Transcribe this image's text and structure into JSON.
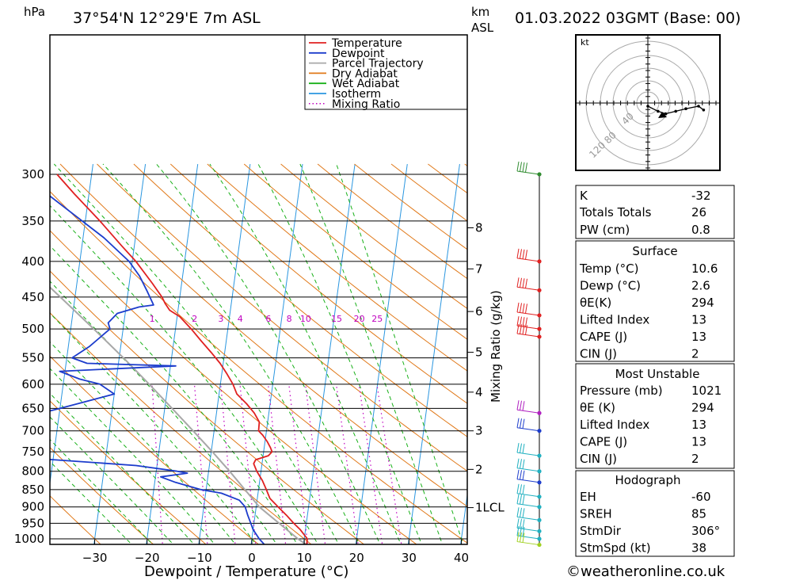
{
  "header": {
    "location": "37°54'N 12°29'E 7m ASL",
    "datetime": "01.03.2022 03GMT (Base: 00)",
    "pressure_unit": "hPa",
    "height_unit_km": "km",
    "height_unit_asl": "ASL"
  },
  "footer": {
    "x_label": "Dewpoint / Temperature (°C)",
    "mixing_label": "Mixing Ratio (g/kg)",
    "credit": "©weatheronline.co.uk"
  },
  "legend": [
    {
      "label": "Temperature",
      "color": "#e02020",
      "style": "solid"
    },
    {
      "label": "Dewpoint",
      "color": "#1c3ccc",
      "style": "solid"
    },
    {
      "label": "Parcel Trajectory",
      "color": "#a8a8a8",
      "style": "solid"
    },
    {
      "label": "Dry Adiabat",
      "color": "#e07818",
      "style": "solid"
    },
    {
      "label": "Wet Adiabat",
      "color": "#18b018",
      "style": "solid"
    },
    {
      "label": "Isotherm",
      "color": "#2a96e0",
      "style": "solid"
    },
    {
      "label": "Mixing Ratio",
      "color": "#c000c0",
      "style": "dotted"
    }
  ],
  "chart_data": {
    "type": "line",
    "subtype": "skew-t log-p",
    "x_axis": {
      "label": "Dewpoint / Temperature (°C)",
      "ticks": [
        -30,
        -20,
        -10,
        0,
        10,
        20,
        30,
        40
      ]
    },
    "y_axis": {
      "label": "hPa",
      "scale": "log",
      "ticks": [
        300,
        350,
        400,
        450,
        500,
        550,
        600,
        650,
        700,
        750,
        800,
        850,
        900,
        950,
        1000
      ],
      "ylim": [
        1000,
        300
      ]
    },
    "height_axis": {
      "label": "km ASL",
      "ticks": [
        {
          "label": "8",
          "p": 358
        },
        {
          "label": "7",
          "p": 410
        },
        {
          "label": "6",
          "p": 472
        },
        {
          "label": "5",
          "p": 540
        },
        {
          "label": "4",
          "p": 616
        },
        {
          "label": "3",
          "p": 700
        },
        {
          "label": "2",
          "p": 795
        },
        {
          "label": "1LCL",
          "p": 902
        }
      ]
    },
    "mixing_ratio_labels": [
      "1",
      "2",
      "3",
      "4",
      "6",
      "8",
      "10",
      "15",
      "20",
      "25"
    ],
    "series": [
      {
        "name": "Temperature",
        "color": "#e02020",
        "points": [
          [
            1020,
            10.6
          ],
          [
            1000,
            10.6
          ],
          [
            970,
            9.0
          ],
          [
            950,
            7.6
          ],
          [
            925,
            6.0
          ],
          [
            900,
            4.2
          ],
          [
            875,
            2.4
          ],
          [
            850,
            1.5
          ],
          [
            825,
            0.5
          ],
          [
            800,
            -0.8
          ],
          [
            780,
            -1.6
          ],
          [
            770,
            -1.3
          ],
          [
            760,
            1.0
          ],
          [
            750,
            1.6
          ],
          [
            740,
            1.2
          ],
          [
            725,
            0.4
          ],
          [
            710,
            -0.6
          ],
          [
            700,
            -1.5
          ],
          [
            680,
            -1.6
          ],
          [
            660,
            -2.8
          ],
          [
            640,
            -4.5
          ],
          [
            620,
            -6.6
          ],
          [
            600,
            -7.6
          ],
          [
            580,
            -9.0
          ],
          [
            560,
            -10.6
          ],
          [
            540,
            -12.6
          ],
          [
            520,
            -14.8
          ],
          [
            500,
            -17.0
          ],
          [
            480,
            -19.5
          ],
          [
            470,
            -21.6
          ],
          [
            460,
            -22.6
          ],
          [
            450,
            -23.4
          ],
          [
            430,
            -25.6
          ],
          [
            400,
            -29.3
          ],
          [
            380,
            -32.4
          ],
          [
            350,
            -37.2
          ],
          [
            320,
            -42.8
          ],
          [
            300,
            -46.6
          ]
        ]
      },
      {
        "name": "Dewpoint",
        "color": "#1c3ccc",
        "points": [
          [
            1020,
            2.6
          ],
          [
            1000,
            1.4
          ],
          [
            970,
            0.0
          ],
          [
            950,
            -0.6
          ],
          [
            925,
            -1.4
          ],
          [
            900,
            -2.1
          ],
          [
            880,
            -3.4
          ],
          [
            860,
            -7.0
          ],
          [
            850,
            -11.0
          ],
          [
            830,
            -16.0
          ],
          [
            815,
            -19.0
          ],
          [
            805,
            -14.0
          ],
          [
            800,
            -16.0
          ],
          [
            785,
            -24.0
          ],
          [
            770,
            -40.0
          ],
          [
            760,
            -60.0
          ],
          [
            740,
            -60.0
          ],
          [
            720,
            -55.0
          ],
          [
            700,
            -48.0
          ],
          [
            690,
            -47.5
          ],
          [
            670,
            -46.8
          ],
          [
            650,
            -40.0
          ],
          [
            620,
            -30.0
          ],
          [
            600,
            -33.0
          ],
          [
            590,
            -37.0
          ],
          [
            575,
            -41.0
          ],
          [
            565,
            -19.0
          ],
          [
            560,
            -36.0
          ],
          [
            550,
            -39.0
          ],
          [
            530,
            -36.0
          ],
          [
            500,
            -32.5
          ],
          [
            490,
            -33.0
          ],
          [
            475,
            -31.5
          ],
          [
            465,
            -27.5
          ],
          [
            462,
            -24.8
          ],
          [
            440,
            -26.5
          ],
          [
            420,
            -28.2
          ],
          [
            400,
            -30.6
          ],
          [
            370,
            -36.0
          ],
          [
            340,
            -43.0
          ],
          [
            320,
            -48.0
          ],
          [
            300,
            -52.0
          ]
        ]
      },
      {
        "name": "Parcel Trajectory",
        "color": "#a8a8a8",
        "points": [
          [
            1020,
            10.6
          ],
          [
            1000,
            8.8
          ],
          [
            950,
            4.8
          ],
          [
            900,
            0.6
          ],
          [
            850,
            -2.6
          ],
          [
            800,
            -6.0
          ],
          [
            750,
            -9.8
          ],
          [
            700,
            -14.0
          ],
          [
            650,
            -18.6
          ],
          [
            600,
            -23.6
          ],
          [
            550,
            -29.2
          ],
          [
            500,
            -35.6
          ],
          [
            450,
            -42.8
          ],
          [
            400,
            -51.0
          ],
          [
            350,
            -60.5
          ],
          [
            300,
            -71.0
          ]
        ]
      }
    ],
    "wind_profile": [
      {
        "p": 300,
        "color": "#2e8b2e"
      },
      {
        "p": 400,
        "color": "#e02020"
      },
      {
        "p": 440,
        "color": "#e02020"
      },
      {
        "p": 478,
        "color": "#e02020"
      },
      {
        "p": 500,
        "color": "#e02020"
      },
      {
        "p": 513,
        "color": "#e02020"
      },
      {
        "p": 660,
        "color": "#b020c0"
      },
      {
        "p": 700,
        "color": "#1c3ccc"
      },
      {
        "p": 760,
        "color": "#20b0c0"
      },
      {
        "p": 800,
        "color": "#20b0c0"
      },
      {
        "p": 830,
        "color": "#1c3ccc"
      },
      {
        "p": 870,
        "color": "#20b0c0"
      },
      {
        "p": 900,
        "color": "#20b0c0"
      },
      {
        "p": 940,
        "color": "#20b0c0"
      },
      {
        "p": 975,
        "color": "#20b0c0"
      },
      {
        "p": 1000,
        "color": "#20b0c0"
      },
      {
        "p": 1020,
        "color": "#a0d020"
      }
    ],
    "hodograph": {
      "unit": "kt",
      "ring_labels": [
        "40",
        "80",
        "120"
      ],
      "points": [
        [
          0,
          0
        ],
        [
          8,
          -4
        ],
        [
          14,
          -6
        ],
        [
          22,
          -4
        ],
        [
          30,
          -2
        ],
        [
          40,
          0
        ],
        [
          44,
          -3
        ]
      ]
    }
  },
  "indices": {
    "k": {
      "label": "K",
      "value": "-32"
    },
    "totals": {
      "label": "Totals Totals",
      "value": "26"
    },
    "pw": {
      "label": "PW (cm)",
      "value": "0.8"
    }
  },
  "surface": {
    "title": "Surface",
    "rows": [
      {
        "label": "Temp (°C)",
        "value": "10.6"
      },
      {
        "label": "Dewp (°C)",
        "value": "2.6"
      },
      {
        "label": "θE(K)",
        "value": "294"
      },
      {
        "label": "Lifted Index",
        "value": "13"
      },
      {
        "label": "CAPE (J)",
        "value": "13"
      },
      {
        "label": "CIN (J)",
        "value": "2"
      }
    ]
  },
  "most_unstable": {
    "title": "Most Unstable",
    "rows": [
      {
        "label": "Pressure (mb)",
        "value": "1021"
      },
      {
        "label": "θE (K)",
        "value": "294"
      },
      {
        "label": "Lifted Index",
        "value": "13"
      },
      {
        "label": "CAPE (J)",
        "value": "13"
      },
      {
        "label": "CIN (J)",
        "value": "2"
      }
    ]
  },
  "hodograph_box": {
    "title": "Hodograph",
    "rows": [
      {
        "label": "EH",
        "value": "-60"
      },
      {
        "label": "SREH",
        "value": "85"
      },
      {
        "label": "StmDir",
        "value": "306°"
      },
      {
        "label": "StmSpd (kt)",
        "value": "38"
      }
    ]
  }
}
